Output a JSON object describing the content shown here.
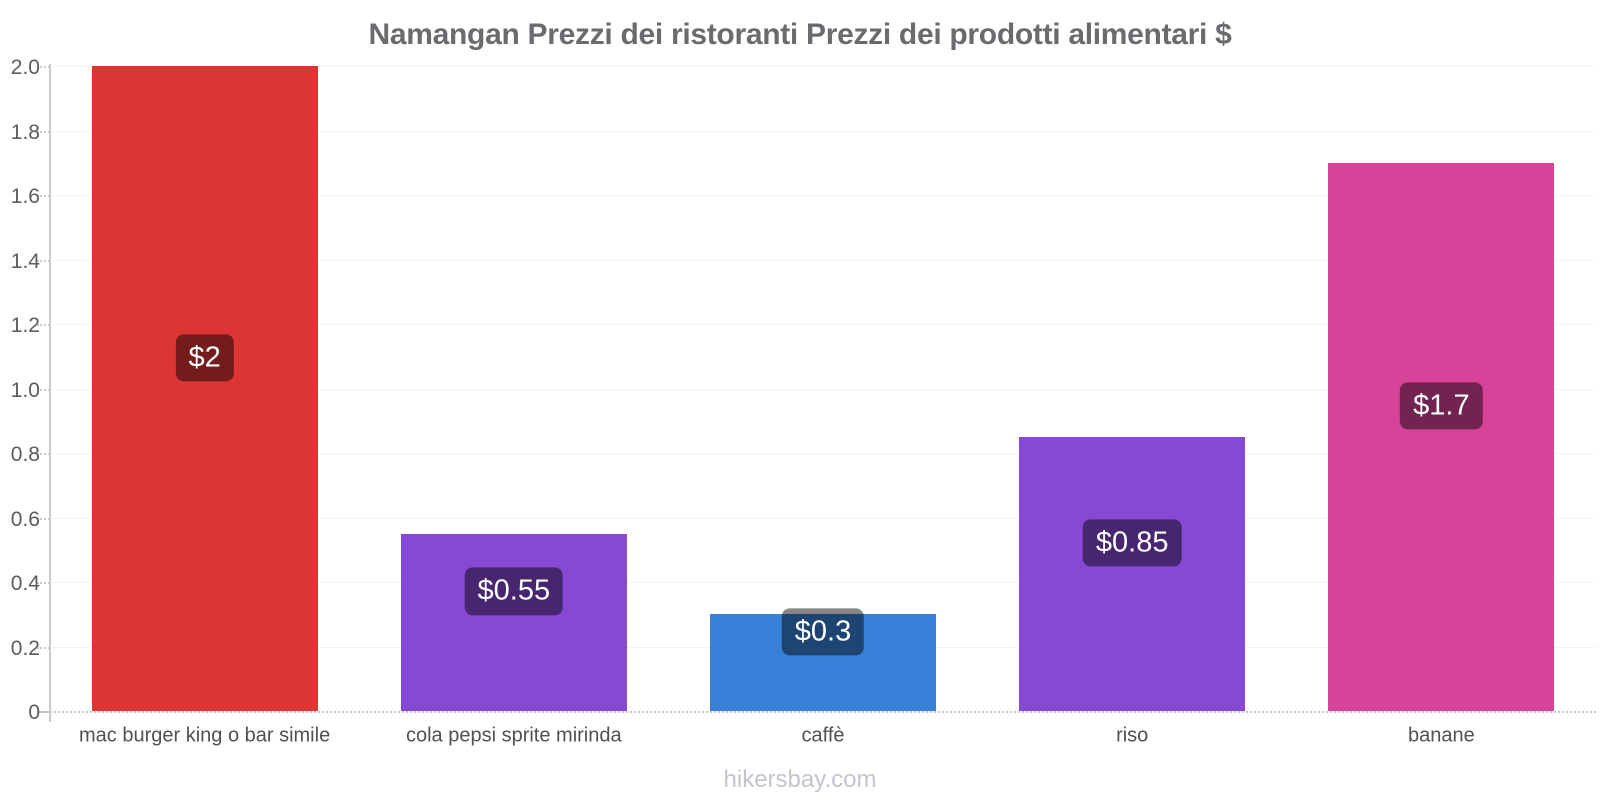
{
  "header": {
    "title": "Namangan Prezzi dei ristoranti Prezzi dei prodotti alimentari $"
  },
  "footer": {
    "text": "hikersbay.com"
  },
  "chart_data": {
    "type": "bar",
    "title": "Namangan Prezzi dei ristoranti Prezzi dei prodotti alimentari $",
    "categories": [
      "mac burger king o bar simile",
      "cola pepsi sprite mirinda",
      "caffè",
      "riso",
      "banane"
    ],
    "values": [
      2,
      0.55,
      0.3,
      0.85,
      1.7
    ],
    "value_labels": [
      "$2",
      "$0.55",
      "$0.3",
      "$0.85",
      "$1.7"
    ],
    "bar_colors": [
      "#dc3533",
      "#8748d4",
      "#3980d8",
      "#8748d4",
      "#d74398"
    ],
    "value_label_text_color": "#ffffff",
    "value_label_overlay": "rgba(0,0,0,0.47)",
    "currency": "$",
    "xlabel": "",
    "ylabel": "",
    "ylim": [
      0,
      2.0
    ],
    "yticks": [
      0,
      0.2,
      0.4,
      0.6,
      0.8,
      1.0,
      1.2,
      1.4,
      1.6,
      1.8,
      2.0
    ],
    "ytick_labels": [
      "0",
      "0.2",
      "0.4",
      "0.6",
      "0.8",
      "1.0",
      "1.2",
      "1.4",
      "1.6",
      "1.8",
      "2.0"
    ],
    "grid": true,
    "legend": false,
    "watermark": "hikersbay.com"
  }
}
